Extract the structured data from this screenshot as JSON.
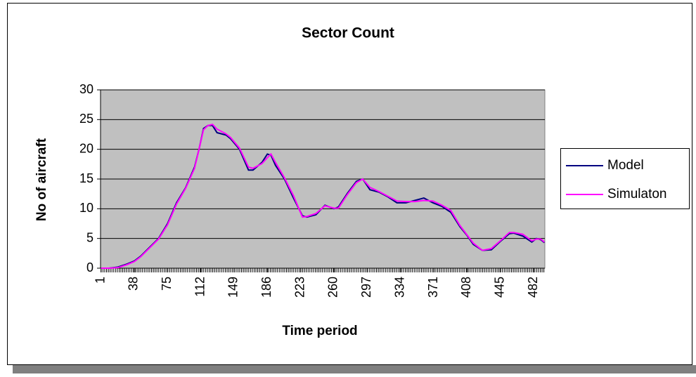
{
  "chart_data": {
    "type": "line",
    "title": "Sector Count",
    "x_label": "Time period",
    "y_label": "No of aircraft",
    "x": [
      1,
      10,
      20,
      30,
      38,
      45,
      55,
      65,
      75,
      85,
      95,
      105,
      110,
      115,
      120,
      125,
      130,
      140,
      145,
      155,
      165,
      170,
      180,
      186,
      190,
      195,
      205,
      215,
      225,
      230,
      240,
      250,
      260,
      265,
      275,
      285,
      292,
      300,
      310,
      320,
      330,
      340,
      350,
      360,
      370,
      380,
      390,
      400,
      408,
      415,
      425,
      435,
      445,
      455,
      460,
      470,
      480,
      485,
      490,
      494
    ],
    "series": [
      {
        "name": "Model",
        "color": "#000080",
        "values": [
          0,
          0,
          0.2,
          0.7,
          1.2,
          2,
          3.5,
          5,
          7.5,
          11,
          13.5,
          17,
          20,
          23.5,
          24,
          24,
          22.8,
          22.4,
          21.8,
          20,
          16.5,
          16.5,
          17.8,
          19.2,
          19,
          17.3,
          15,
          11.8,
          8.8,
          8.6,
          9,
          10.6,
          10,
          10.3,
          12.6,
          14.6,
          15,
          13.2,
          12.8,
          12,
          11,
          11,
          11.4,
          11.8,
          11,
          10.4,
          9.4,
          7,
          5.5,
          4,
          3,
          3.1,
          4.5,
          5.8,
          5.9,
          5.4,
          4.4,
          5,
          4.8,
          4.3
        ]
      },
      {
        "name": "Simulaton",
        "color": "#ff00ff",
        "values": [
          0,
          0,
          0.1,
          0.6,
          1.1,
          1.9,
          3.4,
          4.9,
          7.3,
          10.8,
          13.4,
          16.8,
          20,
          23.3,
          24,
          24.2,
          23.4,
          22.6,
          22,
          20.2,
          17,
          16.8,
          17.6,
          18.6,
          19.2,
          17.8,
          15.2,
          12.2,
          8.6,
          8.7,
          9.2,
          10.5,
          10.1,
          10.1,
          12.4,
          14.4,
          15,
          13.6,
          12.9,
          12.1,
          11.3,
          11.2,
          11.2,
          11.4,
          11.3,
          10.6,
          9.7,
          7.2,
          5.6,
          4.2,
          3,
          3.3,
          4.6,
          6,
          6,
          5.7,
          4.6,
          4.9,
          4.9,
          4.4
        ]
      }
    ],
    "xlim": [
      0.5,
      494.5
    ],
    "xticks": [
      1,
      38,
      75,
      112,
      149,
      186,
      223,
      260,
      297,
      334,
      371,
      408,
      445,
      482
    ],
    "ylim": [
      0,
      30
    ],
    "yticks": [
      0,
      5,
      10,
      15,
      20,
      25,
      30
    ],
    "grid": true,
    "legend": "right"
  }
}
